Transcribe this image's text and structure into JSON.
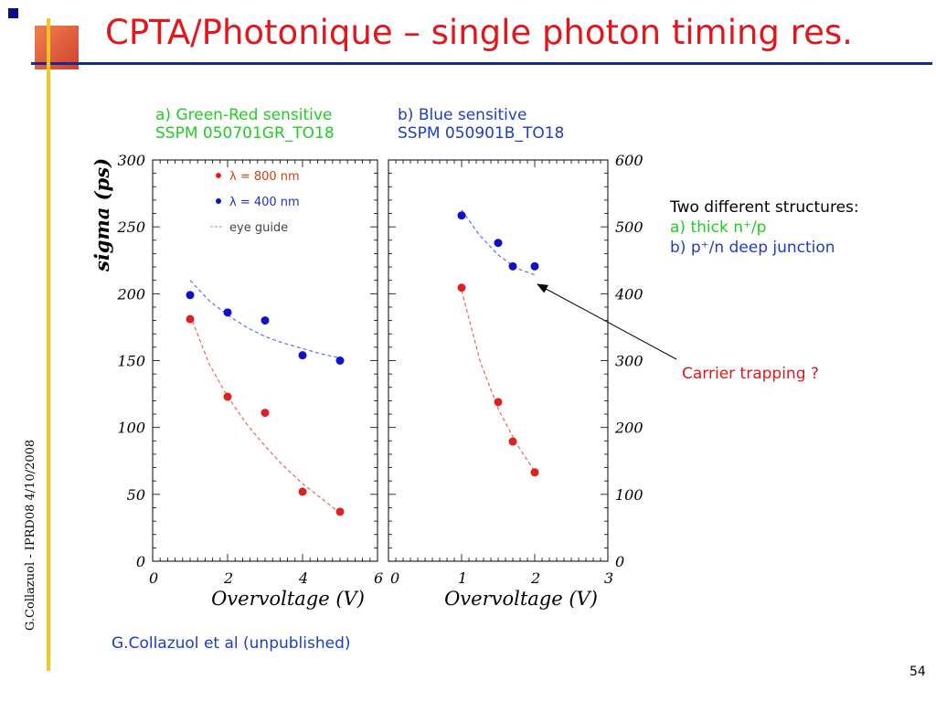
{
  "slide": {
    "title": "CPTA/Photonique – single photon timing res.",
    "page_number": "54",
    "side_credit": "G.Collazuol - IPRD08  4/10/2008",
    "bottom_credit": "G.Collazuol et al (unpublished)"
  },
  "panel_a": {
    "line1": "a) Green-Red sensitive",
    "line2": "SSPM 050701GR_TO18"
  },
  "panel_b": {
    "line1": "b) Blue sensitive",
    "line2": "SSPM 050901B_TO18"
  },
  "notes": {
    "heading": "Two different structures:",
    "item_a": "a) thick n⁺/p",
    "item_b": "b) p⁺/n  deep junction",
    "annotation": "Carrier trapping ?"
  },
  "colors": {
    "title": "#e3161b",
    "green": "#22cc22",
    "blue": "#1e3cc8",
    "red": "#e3161b",
    "point_red": "#e02020",
    "point_blue": "#1010c8"
  },
  "chart_data": [
    {
      "type": "scatter",
      "ylabel": "sigma (ps)",
      "xlabel": "Overvoltage (V)",
      "xlim": [
        0,
        6
      ],
      "ylim": [
        0,
        300
      ],
      "xticks": [
        0,
        2,
        4,
        6
      ],
      "yticks": [
        0,
        50,
        100,
        150,
        200,
        250,
        300
      ],
      "legend": [
        {
          "symbol": "red-dot",
          "label": "λ = 800 nm"
        },
        {
          "symbol": "blue-dot",
          "label": "λ = 400 nm"
        },
        {
          "symbol": "dashed",
          "label": "eye guide"
        }
      ],
      "legend_position": "top-left",
      "series": [
        {
          "name": "λ = 800 nm",
          "color": "red",
          "x": [
            1,
            2,
            3,
            4,
            5
          ],
          "y": [
            181,
            123,
            111,
            52,
            37
          ]
        },
        {
          "name": "λ = 400 nm",
          "color": "blue",
          "x": [
            1,
            2,
            3,
            4,
            5
          ],
          "y": [
            199,
            186,
            180,
            154,
            150
          ]
        }
      ],
      "eye_guides": [
        {
          "color": "red",
          "x": [
            1,
            1.5,
            2,
            2.5,
            3,
            3.5,
            4,
            4.5,
            5
          ],
          "y": [
            184,
            148,
            123,
            103,
            86,
            71,
            58,
            47,
            36
          ]
        },
        {
          "color": "blue",
          "x": [
            1,
            1.5,
            2,
            2.5,
            3,
            3.5,
            4,
            4.5,
            5
          ],
          "y": [
            210,
            195,
            184,
            175,
            168,
            163,
            159,
            155,
            152
          ]
        }
      ]
    },
    {
      "type": "scatter",
      "xlabel": "Overvoltage (V)",
      "xlim": [
        0,
        3
      ],
      "ylim": [
        0,
        600
      ],
      "xticks": [
        0,
        1,
        2,
        3
      ],
      "yticks": [
        0,
        100,
        200,
        300,
        400,
        500,
        600
      ],
      "y_axis_side": "right",
      "series": [
        {
          "name": "λ = 400 nm",
          "color": "blue",
          "x": [
            1,
            1.5,
            1.7,
            2
          ],
          "y": [
            517,
            476,
            441,
            441
          ]
        },
        {
          "name": "λ = 800 nm",
          "color": "red",
          "x": [
            1,
            1.5,
            1.7,
            2
          ],
          "y": [
            409,
            238,
            179,
            133
          ]
        }
      ],
      "eye_guides": [
        {
          "color": "blue",
          "x": [
            1,
            1.25,
            1.5,
            1.75,
            2
          ],
          "y": [
            525,
            487,
            458,
            438,
            428
          ]
        },
        {
          "color": "red",
          "x": [
            1,
            1.25,
            1.5,
            1.75,
            2
          ],
          "y": [
            405,
            300,
            228,
            176,
            134
          ]
        }
      ]
    }
  ]
}
